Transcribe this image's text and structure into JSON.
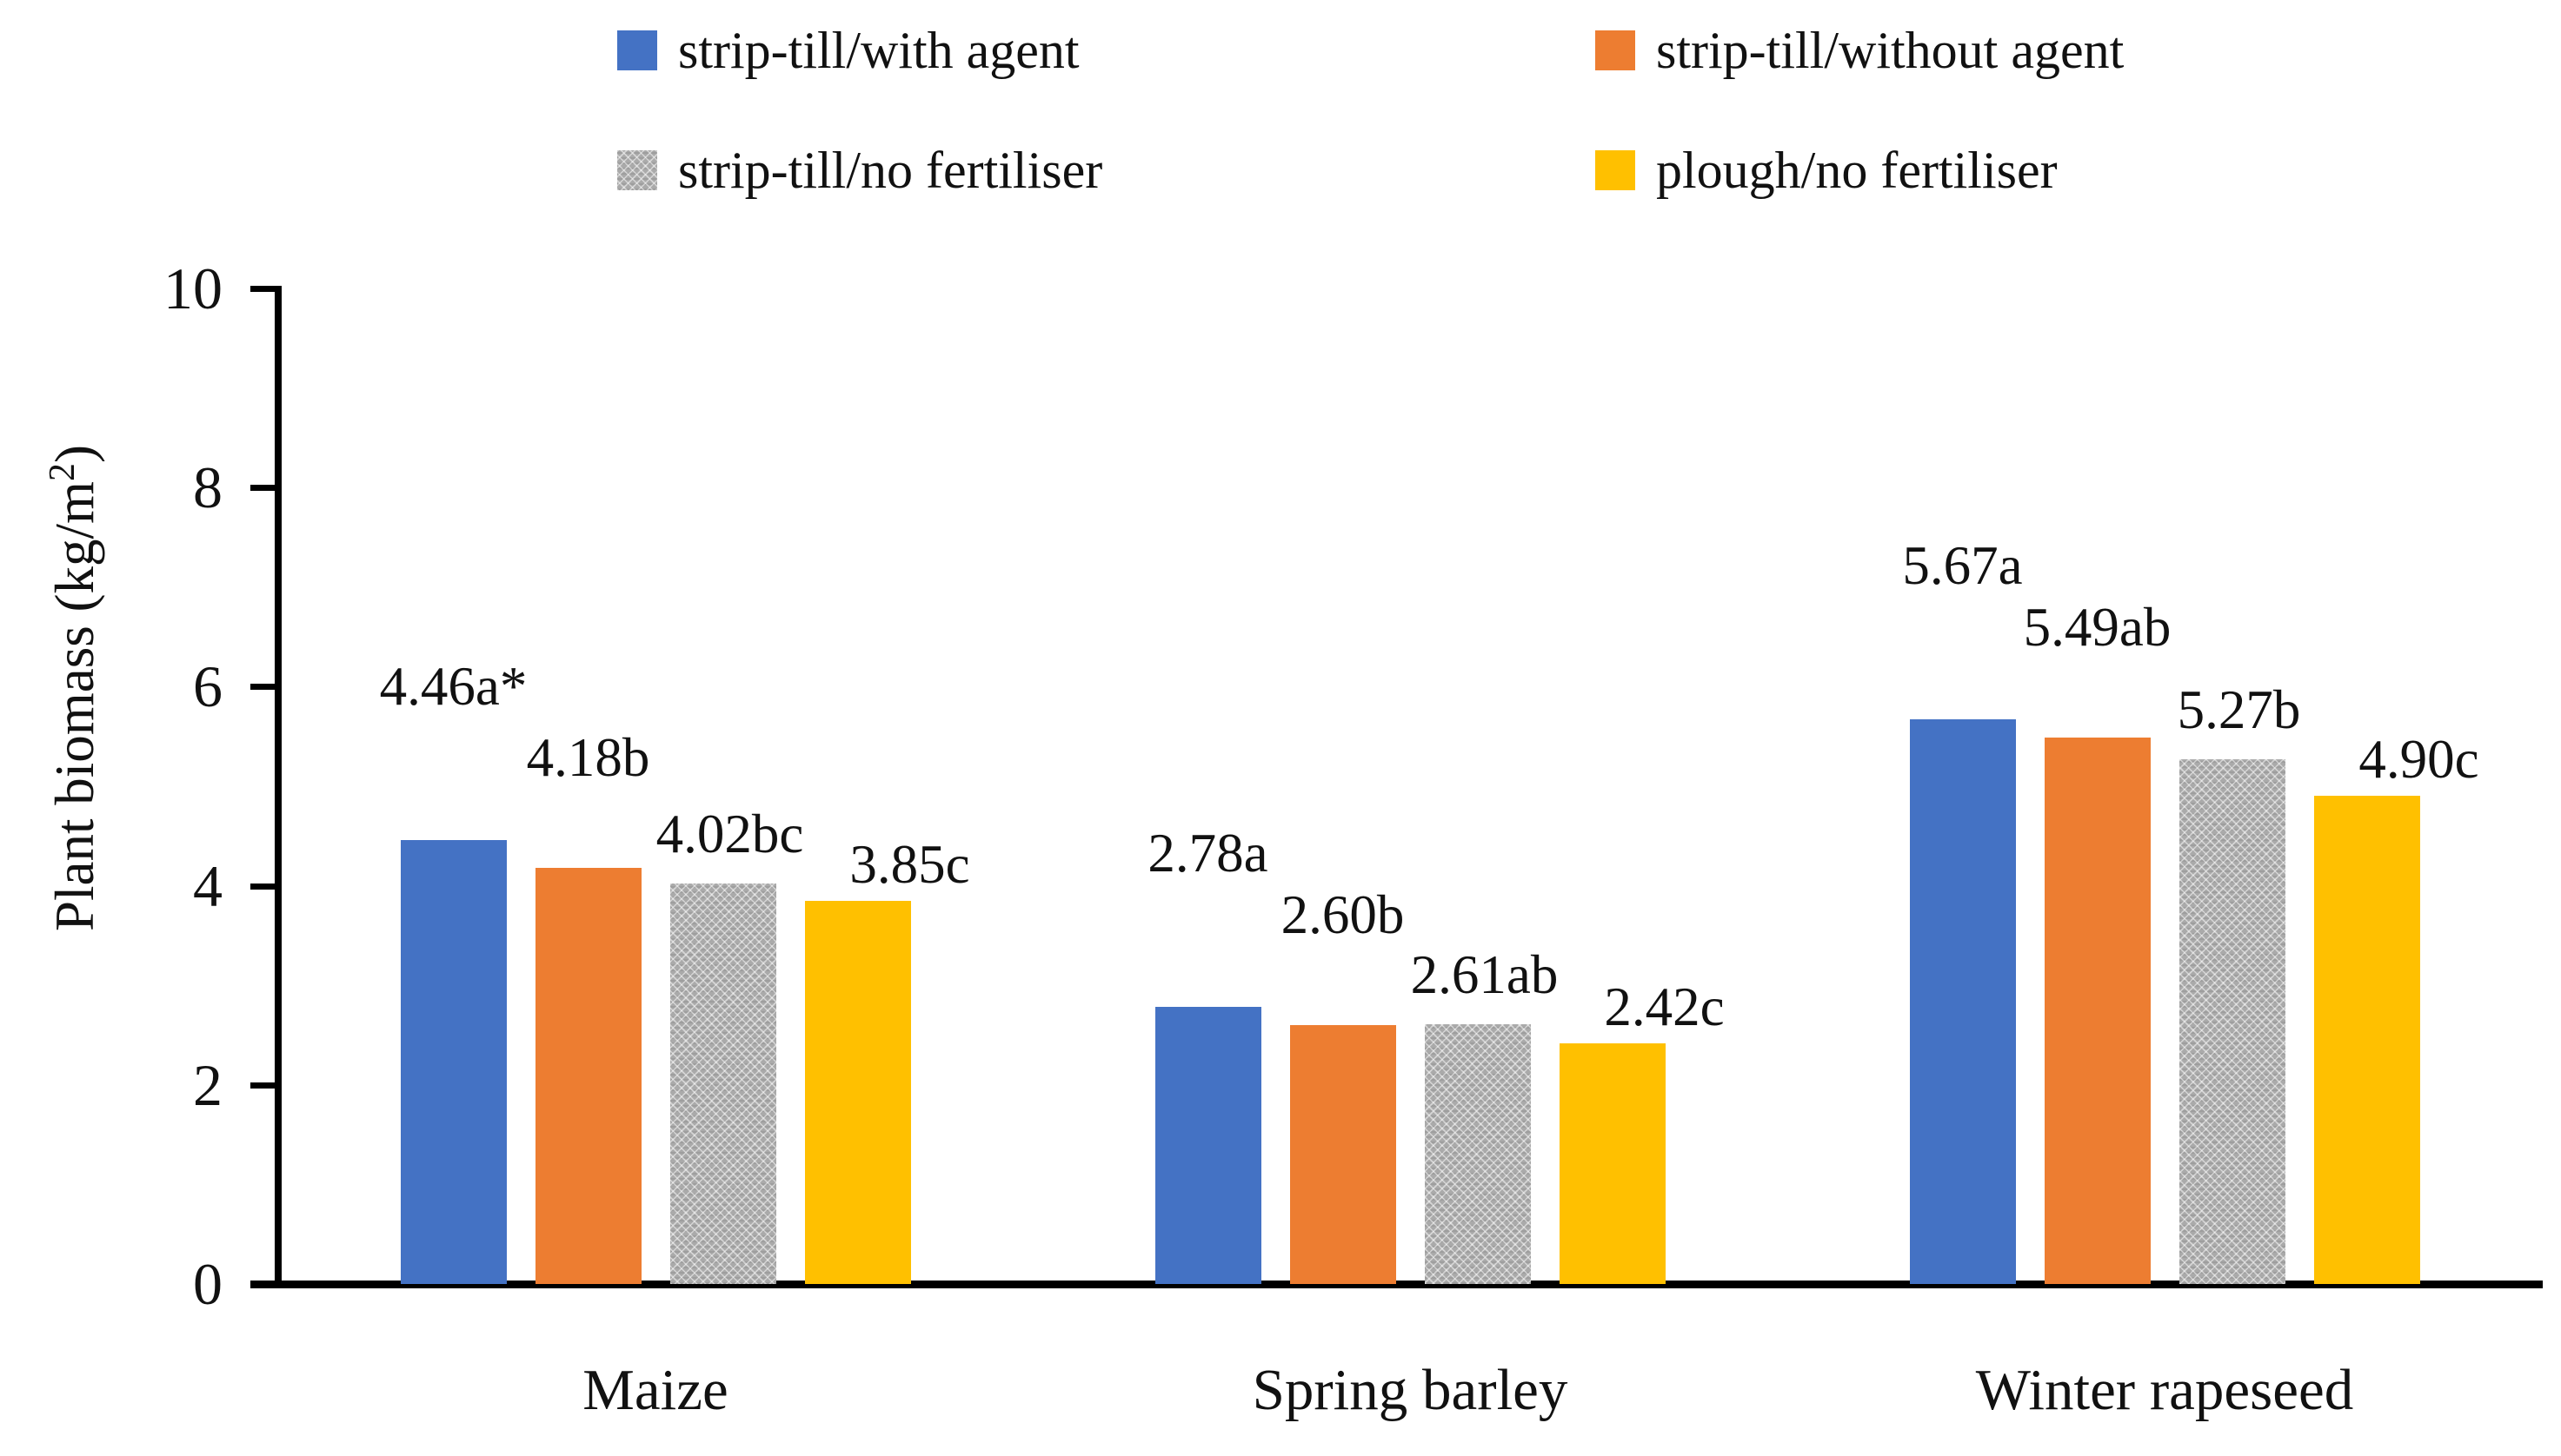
{
  "chart_data": {
    "type": "bar",
    "title": "",
    "xlabel": "",
    "ylabel": "Plant biomass (kg/m²)",
    "categories": [
      "Maize",
      "Spring barley",
      "Winter rapeseed"
    ],
    "series": [
      {
        "name": "strip-till/with agent",
        "color": "#4472C4",
        "pattern": false,
        "values": [
          4.46,
          2.78,
          5.67
        ],
        "data_labels": [
          "4.46a*",
          "2.78a",
          "5.67a"
        ]
      },
      {
        "name": "strip-till/without agent",
        "color": "#ED7D31",
        "pattern": false,
        "values": [
          4.18,
          2.6,
          5.49
        ],
        "data_labels": [
          "4.18b",
          "2.60b",
          "5.49ab"
        ]
      },
      {
        "name": "strip-till/no fertiliser",
        "color": "#A6A6A6",
        "pattern": true,
        "values": [
          4.02,
          2.61,
          5.27
        ],
        "data_labels": [
          "4.02bc",
          "2.61ab",
          "5.27b"
        ]
      },
      {
        "name": "plough/no fertiliser",
        "color": "#FFC000",
        "pattern": false,
        "values": [
          3.85,
          2.42,
          4.9
        ],
        "data_labels": [
          "3.85c",
          "2.42c",
          "4.90c"
        ]
      }
    ],
    "ylim": [
      0,
      10
    ],
    "yticks": [
      0,
      2,
      4,
      6,
      8,
      10
    ],
    "grid": false,
    "legend_position": "top",
    "axis_color": "#000000",
    "text_color": "#111111"
  }
}
